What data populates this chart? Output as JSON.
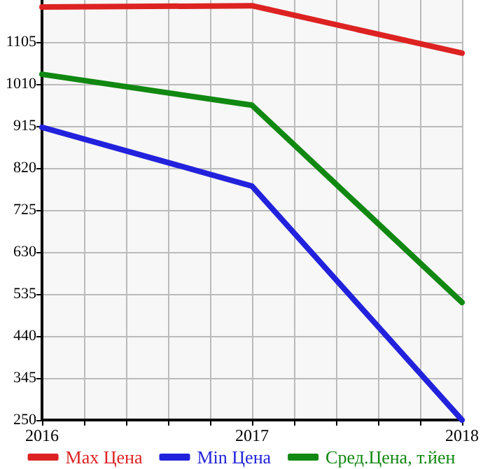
{
  "chart_data": {
    "type": "line",
    "x": [
      2016,
      2017,
      2018
    ],
    "series": [
      {
        "name": "Max Цена",
        "color": "#dd2222",
        "values": [
          1184,
          1187,
          1080
        ]
      },
      {
        "name": "Min Цена",
        "color": "#2222dd",
        "values": [
          912,
          779,
          250
        ]
      },
      {
        "name": "Сред.Цена, т.йен",
        "color": "#118811",
        "values": [
          1032,
          962,
          516
        ]
      }
    ],
    "xlim": [
      2016,
      2018
    ],
    "xticks": [
      2016,
      {
        "value": 2016.2,
        "label": null
      },
      {
        "value": 2016.4,
        "label": null
      },
      {
        "value": 2016.6,
        "label": null
      },
      {
        "value": 2016.8,
        "label": null
      },
      2017,
      {
        "value": 2017.2,
        "label": null
      },
      {
        "value": 2017.4,
        "label": null
      },
      {
        "value": 2017.6,
        "label": null
      },
      {
        "value": 2017.8,
        "label": null
      },
      2018
    ],
    "ylim": [
      250,
      1200
    ],
    "yticks": [
      250,
      345,
      440,
      535,
      630,
      725,
      820,
      915,
      1010,
      1105
    ],
    "grid": true,
    "legend": "bottom",
    "marker": "none",
    "line_style": "solid"
  }
}
